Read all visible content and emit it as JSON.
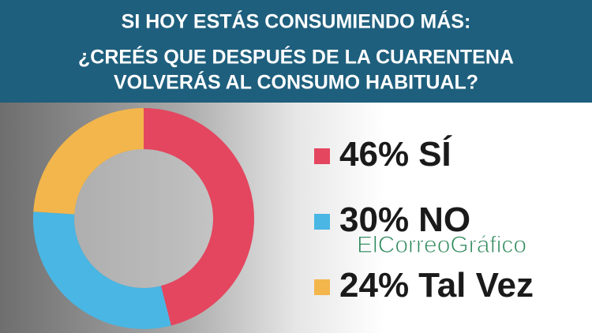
{
  "chart_data": {
    "type": "donut",
    "title": [
      "SI HOY ESTÁS CONSUMIENDO MÁS:",
      "¿CREÉS QUE DESPUÉS DE LA CUARENTENA",
      "VOLVERÁS AL CONSUMO HABITUAL?"
    ],
    "categories": [
      "SÍ",
      "NO",
      "Tal Vez"
    ],
    "values": [
      46,
      30,
      24
    ],
    "value_labels": [
      "46%",
      "30%",
      "24%"
    ],
    "colors": [
      "#e4465f",
      "#4ab6e3",
      "#f3b64c"
    ],
    "legend": "right",
    "watermark": "ElCorreoGráfico"
  }
}
